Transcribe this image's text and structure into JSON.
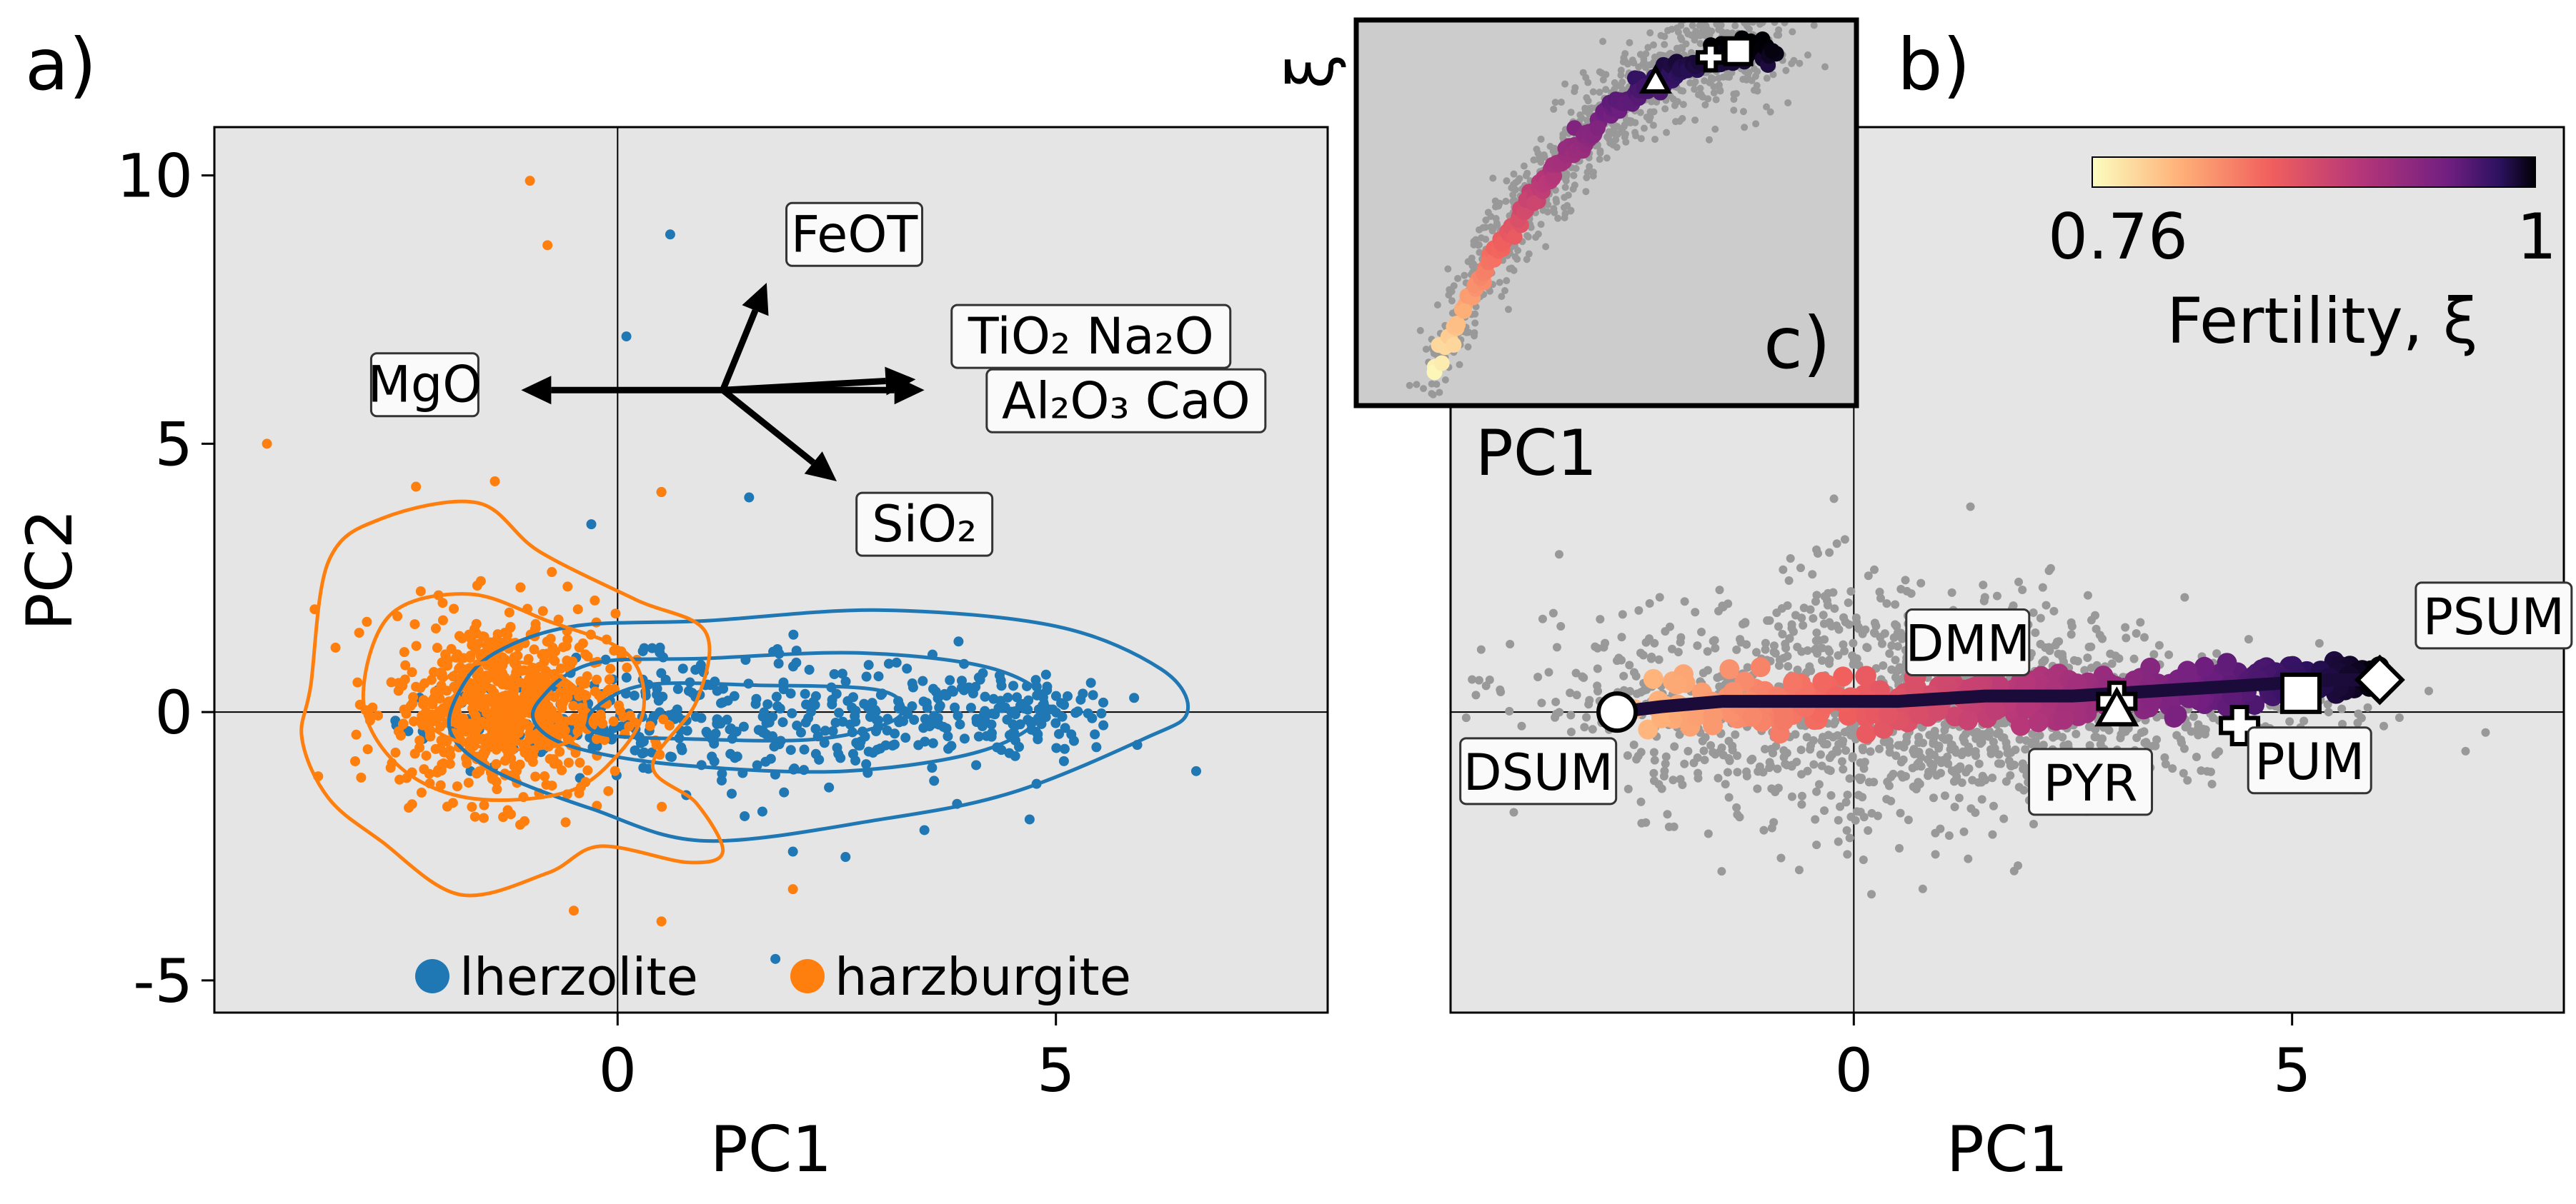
{
  "chart_data": [
    {
      "panel_label": "a)",
      "type": "scatter",
      "xlabel": "PC1",
      "ylabel": "PC2",
      "xlim": [
        -4.6,
        8.1
      ],
      "ylim": [
        -5.6,
        10.9
      ],
      "xticks": [
        {
          "v": 0,
          "label": "0"
        },
        {
          "v": 5,
          "label": "5"
        }
      ],
      "yticks": [
        {
          "v": 10,
          "label": "10"
        },
        {
          "v": 5,
          "label": "5"
        },
        {
          "v": 0,
          "label": "0"
        },
        {
          "v": -5,
          "label": "-5"
        }
      ],
      "background": "#e5e5e5",
      "reference_lines": {
        "x": 0,
        "y": 0
      },
      "series": [
        {
          "name": "lherzolite",
          "color": "#1f77b4",
          "center": [
            1.8,
            -0.1
          ],
          "spread": [
            1.7,
            0.95
          ],
          "count": 520,
          "outliers": [
            [
              0.6,
              8.9
            ],
            [
              0.1,
              7.0
            ],
            [
              1.5,
              4.0
            ],
            [
              2.0,
              -2.6
            ],
            [
              2.6,
              -2.7
            ],
            [
              3.5,
              -2.2
            ],
            [
              4.7,
              -2.0
            ],
            [
              6.6,
              -1.1
            ],
            [
              1.8,
              -4.6
            ],
            [
              0.5,
              4.1
            ],
            [
              -0.3,
              3.5
            ]
          ]
        },
        {
          "name": "harzburgite",
          "color": "#ff7f0e",
          "center": [
            -1.3,
            0.1
          ],
          "spread": [
            0.85,
            1.15
          ],
          "count": 700,
          "outliers": [
            [
              -1.0,
              9.9
            ],
            [
              -0.8,
              8.7
            ],
            [
              -4.0,
              5.0
            ],
            [
              0.5,
              4.1
            ],
            [
              -1.4,
              4.3
            ],
            [
              -2.3,
              4.2
            ],
            [
              -0.5,
              -3.7
            ],
            [
              2.0,
              -3.3
            ],
            [
              0.5,
              -3.9
            ]
          ]
        }
      ],
      "contours": [
        {
          "series": "lherzolite",
          "color": "#1f77b4",
          "levels": [
            [
              [
                -1.8,
                0.4
              ],
              [
                -1.4,
                1.1
              ],
              [
                -0.5,
                1.6
              ],
              [
                1.0,
                1.7
              ],
              [
                3.0,
                1.9
              ],
              [
                5.0,
                1.6
              ],
              [
                6.2,
                0.8
              ],
              [
                6.5,
                0.0
              ],
              [
                6.0,
                -0.5
              ],
              [
                4.5,
                -1.5
              ],
              [
                3.0,
                -2.0
              ],
              [
                1.0,
                -2.4
              ],
              [
                -0.3,
                -1.8
              ],
              [
                -1.4,
                -1.1
              ],
              [
                -1.9,
                -0.4
              ]
            ],
            [
              [
                -0.9,
                0.2
              ],
              [
                -0.3,
                0.9
              ],
              [
                1.0,
                1.0
              ],
              [
                2.8,
                1.1
              ],
              [
                4.3,
                0.8
              ],
              [
                4.9,
                0.1
              ],
              [
                4.2,
                -0.7
              ],
              [
                2.6,
                -1.1
              ],
              [
                0.8,
                -1.0
              ],
              [
                -0.4,
                -0.7
              ],
              [
                -0.9,
                -0.3
              ]
            ],
            [
              [
                -0.3,
                0.0
              ],
              [
                0.3,
                0.5
              ],
              [
                1.6,
                0.5
              ],
              [
                3.0,
                0.4
              ],
              [
                3.2,
                -0.1
              ],
              [
                2.3,
                -0.5
              ],
              [
                0.8,
                -0.5
              ],
              [
                -0.2,
                -0.4
              ]
            ]
          ]
        },
        {
          "series": "harzburgite",
          "color": "#ff7f0e",
          "levels": [
            [
              [
                -3.5,
                0.5
              ],
              [
                -3.3,
                2.8
              ],
              [
                -2.7,
                3.6
              ],
              [
                -1.6,
                3.9
              ],
              [
                -0.9,
                3.0
              ],
              [
                0.2,
                2.1
              ],
              [
                1.0,
                1.5
              ],
              [
                0.9,
                0.2
              ],
              [
                0.4,
                -1.0
              ],
              [
                0.9,
                -1.7
              ],
              [
                1.2,
                -2.6
              ],
              [
                0.8,
                -2.8
              ],
              [
                -0.2,
                -2.5
              ],
              [
                -0.8,
                -3.0
              ],
              [
                -1.8,
                -3.4
              ],
              [
                -2.7,
                -2.4
              ],
              [
                -3.3,
                -1.6
              ],
              [
                -3.6,
                -0.5
              ]
            ],
            [
              [
                -2.9,
                0.2
              ],
              [
                -2.6,
                1.8
              ],
              [
                -1.7,
                2.2
              ],
              [
                -0.8,
                1.7
              ],
              [
                0.1,
                1.1
              ],
              [
                0.3,
                0.1
              ],
              [
                0.0,
                -0.8
              ],
              [
                -0.6,
                -1.5
              ],
              [
                -1.7,
                -1.6
              ],
              [
                -2.5,
                -1.0
              ]
            ],
            [
              [
                -2.2,
                0.0
              ],
              [
                -1.8,
                0.8
              ],
              [
                -1.0,
                0.9
              ],
              [
                -0.4,
                0.3
              ],
              [
                -0.5,
                -0.5
              ],
              [
                -1.2,
                -0.7
              ],
              [
                -1.9,
                -0.5
              ]
            ]
          ]
        }
      ],
      "loadings": [
        {
          "label": "FeOT",
          "vec": [
            0.5,
            2.0
          ],
          "label_pos": [
            2.7,
            8.9
          ]
        },
        {
          "label": "MgO",
          "vec": [
            -2.3,
            0.0
          ],
          "label_pos": [
            -2.2,
            6.1
          ]
        },
        {
          "label": "TiO₂ Na₂O",
          "vec": [
            2.2,
            0.2
          ],
          "label_pos": [
            5.4,
            7.0
          ]
        },
        {
          "label": "Al₂O₃ CaO",
          "vec": [
            2.3,
            0.0
          ],
          "label_pos": [
            5.8,
            5.8
          ]
        },
        {
          "label": "SiO₂",
          "vec": [
            1.3,
            -1.7
          ],
          "label_pos": [
            3.5,
            3.5
          ]
        }
      ],
      "loadings_origin": [
        1.2,
        6.0
      ],
      "legend": {
        "placement": "bottom-center",
        "entries": [
          "lherzolite",
          "harzburgite"
        ]
      }
    },
    {
      "panel_label": "b)",
      "type": "scatter",
      "xlabel": "PC1",
      "xlim": [
        -4.6,
        8.1
      ],
      "ylim": [
        -5.6,
        10.9
      ],
      "xticks": [
        {
          "v": 0,
          "label": "0"
        },
        {
          "v": 5,
          "label": "5"
        }
      ],
      "background": "#e5e5e5",
      "reference_lines": {
        "x": 0,
        "y": 0
      },
      "background_points": {
        "color": "#999999",
        "center": [
          0.6,
          0.1
        ],
        "spread": [
          2.0,
          1.2
        ],
        "count": 1500
      },
      "fertility_track": [
        [
          -2.7,
          0.0
        ],
        [
          -2.2,
          0.1
        ],
        [
          -1.5,
          0.2
        ],
        [
          -0.5,
          0.2
        ],
        [
          0.5,
          0.2
        ],
        [
          1.5,
          0.3
        ],
        [
          2.5,
          0.3
        ],
        [
          3.5,
          0.4
        ],
        [
          4.5,
          0.5
        ],
        [
          5.5,
          0.6
        ],
        [
          6.0,
          0.6
        ]
      ],
      "colorbar": {
        "label": "Fertility, ξ",
        "min_label": "0.76",
        "max_label": "1",
        "colormap": "magma_r"
      },
      "reference_compositions": [
        {
          "label": "DSUM",
          "x": -2.7,
          "y": 0.0,
          "marker": "circle",
          "label_pos": [
            -3.6,
            -1.1
          ]
        },
        {
          "label": "DMM",
          "x": 3.0,
          "y": 0.2,
          "marker": "plus",
          "label_pos": [
            1.3,
            1.3
          ]
        },
        {
          "label": "PYR",
          "x": 3.0,
          "y": 0.05,
          "marker": "triangle",
          "label_pos": [
            2.7,
            -1.3
          ]
        },
        {
          "label": "PUM",
          "x": 5.1,
          "y": 0.35,
          "marker": "square",
          "label_pos": [
            5.2,
            -0.9
          ]
        },
        {
          "label": "PSUM",
          "x": 6.0,
          "y": 0.6,
          "marker": "diamond",
          "label_pos": [
            7.3,
            1.8
          ]
        },
        {
          "label": "",
          "x": 4.4,
          "y": -0.25,
          "marker": "plus"
        }
      ]
    },
    {
      "panel_label": "c)",
      "type": "scatter",
      "xlabel": "PC1",
      "ylabel": "ξ",
      "xlim": [
        -4.6,
        8.1
      ],
      "ylim": [
        0.74,
        1.02
      ],
      "background": "#cccccc",
      "curve": {
        "x_from": -2.7,
        "x_to": 6.0
      },
      "reference_compositions": [
        {
          "marker": "triangle",
          "x": 3.0
        },
        {
          "marker": "plus",
          "x": 4.4
        },
        {
          "marker": "square",
          "x": 5.1
        }
      ]
    }
  ]
}
